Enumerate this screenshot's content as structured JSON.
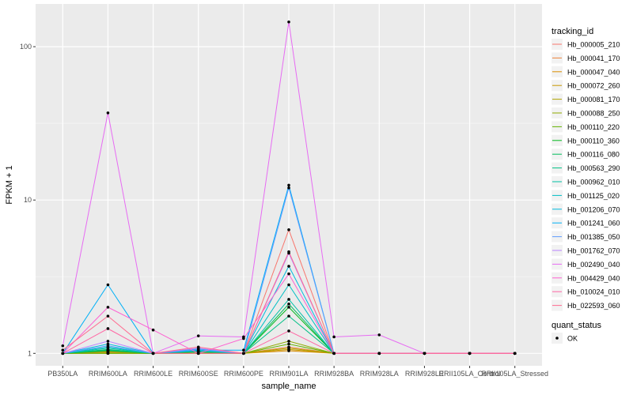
{
  "chart_data": {
    "type": "line",
    "xlabel": "sample_name",
    "ylabel": "FPKM + 1",
    "y_scale": "log10",
    "ylim": [
      0.83,
      190
    ],
    "y_ticks": [
      {
        "value": 1,
        "label": "1"
      },
      {
        "value": 10,
        "label": "10"
      },
      {
        "value": 100,
        "label": "100"
      }
    ],
    "grid": true,
    "legend_placement": "right",
    "categories": [
      "PB350LA",
      "RRIM600LA",
      "RRIM600LE",
      "RRIM600SE",
      "RRIM600PE",
      "RRIM901LA",
      "RRIM928BA",
      "RRIM928LA",
      "RRIM928LE",
      "RRII105LA_Control",
      "RRII105LA_Stressed"
    ],
    "legend": {
      "title": "tracking_id",
      "items": [
        {
          "name": "Hb_000005_210",
          "color": "#F8766D"
        },
        {
          "name": "Hb_000041_170",
          "color": "#EC8239"
        },
        {
          "name": "Hb_000047_040",
          "color": "#DB8E00"
        },
        {
          "name": "Hb_000072_260",
          "color": "#C79800"
        },
        {
          "name": "Hb_000081_170",
          "color": "#AEA200"
        },
        {
          "name": "Hb_000088_250",
          "color": "#8FAA00"
        },
        {
          "name": "Hb_000110_220",
          "color": "#64B200"
        },
        {
          "name": "Hb_000110_360",
          "color": "#00B81B"
        },
        {
          "name": "Hb_000116_080",
          "color": "#00BD5C"
        },
        {
          "name": "Hb_000563_290",
          "color": "#00C085"
        },
        {
          "name": "Hb_000962_010",
          "color": "#00C1A7"
        },
        {
          "name": "Hb_001125_020",
          "color": "#00BFC4"
        },
        {
          "name": "Hb_001206_070",
          "color": "#00BADE"
        },
        {
          "name": "Hb_001241_060",
          "color": "#00B0F6"
        },
        {
          "name": "Hb_001385_050",
          "color": "#619CFF"
        },
        {
          "name": "Hb_001762_070",
          "color": "#B983FF"
        },
        {
          "name": "Hb_002490_040",
          "color": "#E76BF3"
        },
        {
          "name": "Hb_004429_040",
          "color": "#FD61D1"
        },
        {
          "name": "Hb_010024_010",
          "color": "#FF67A4"
        },
        {
          "name": "Hb_022593_060",
          "color": "#FF6C91"
        }
      ]
    },
    "legend2": {
      "title": "quant_status",
      "items": [
        {
          "name": "OK"
        }
      ]
    },
    "series": [
      {
        "name": "Hb_000005_210",
        "color": "#F8766D",
        "values": [
          1.0,
          1.05,
          1.0,
          1.0,
          1.0,
          6.4,
          1.0,
          1.0,
          1.0,
          1.0,
          1.0
        ]
      },
      {
        "name": "Hb_000041_170",
        "color": "#EC8239",
        "values": [
          1.0,
          1.02,
          1.0,
          1.0,
          1.0,
          1.1,
          1.0,
          1.0,
          1.0,
          1.0,
          1.0
        ]
      },
      {
        "name": "Hb_000047_040",
        "color": "#DB8E00",
        "values": [
          1.0,
          1.0,
          1.0,
          1.0,
          1.0,
          1.04,
          1.0,
          1.0,
          1.0,
          1.0,
          1.0
        ]
      },
      {
        "name": "Hb_000072_260",
        "color": "#C79800",
        "values": [
          1.0,
          1.0,
          1.0,
          1.0,
          1.0,
          1.06,
          1.0,
          1.0,
          1.0,
          1.0,
          1.0
        ]
      },
      {
        "name": "Hb_000081_170",
        "color": "#AEA200",
        "values": [
          1.0,
          1.01,
          1.0,
          1.0,
          1.0,
          1.08,
          1.0,
          1.0,
          1.0,
          1.0,
          1.0
        ]
      },
      {
        "name": "Hb_000088_250",
        "color": "#8FAA00",
        "values": [
          1.0,
          1.03,
          1.0,
          1.0,
          1.0,
          1.2,
          1.0,
          1.0,
          1.0,
          1.0,
          1.0
        ]
      },
      {
        "name": "Hb_000110_220",
        "color": "#64B200",
        "values": [
          1.0,
          1.0,
          1.0,
          1.0,
          1.0,
          1.15,
          1.0,
          1.0,
          1.0,
          1.0,
          1.0
        ]
      },
      {
        "name": "Hb_000110_360",
        "color": "#00B81B",
        "values": [
          1.0,
          1.04,
          1.0,
          1.02,
          1.0,
          2.0,
          1.0,
          1.0,
          1.0,
          1.0,
          1.0
        ]
      },
      {
        "name": "Hb_000116_080",
        "color": "#00BD5C",
        "values": [
          1.0,
          1.06,
          1.0,
          1.03,
          1.0,
          2.1,
          1.0,
          1.0,
          1.0,
          1.0,
          1.0
        ]
      },
      {
        "name": "Hb_000563_290",
        "color": "#00C085",
        "values": [
          1.0,
          1.05,
          1.0,
          1.04,
          1.0,
          1.75,
          1.0,
          1.0,
          1.0,
          1.0,
          1.0
        ]
      },
      {
        "name": "Hb_000962_010",
        "color": "#00C1A7",
        "values": [
          1.0,
          1.08,
          1.0,
          1.03,
          1.0,
          2.25,
          1.0,
          1.0,
          1.0,
          1.0,
          1.0
        ]
      },
      {
        "name": "Hb_001125_020",
        "color": "#00BFC4",
        "values": [
          1.0,
          1.1,
          1.0,
          1.05,
          1.0,
          2.8,
          1.0,
          1.0,
          1.0,
          1.0,
          1.0
        ]
      },
      {
        "name": "Hb_001206_070",
        "color": "#00BADE",
        "values": [
          1.0,
          1.15,
          1.0,
          1.07,
          1.0,
          3.7,
          1.0,
          1.0,
          1.0,
          1.0,
          1.0
        ]
      },
      {
        "name": "Hb_001241_060",
        "color": "#00B0F6",
        "values": [
          1.0,
          2.8,
          1.0,
          1.05,
          1.05,
          12.5,
          1.0,
          1.0,
          1.0,
          1.0,
          1.0
        ]
      },
      {
        "name": "Hb_001385_050",
        "color": "#619CFF",
        "values": [
          1.0,
          1.12,
          1.0,
          1.06,
          1.0,
          12.0,
          1.0,
          1.0,
          1.0,
          1.0,
          1.0
        ]
      },
      {
        "name": "Hb_001762_070",
        "color": "#B983FF",
        "values": [
          1.0,
          1.2,
          1.0,
          1.08,
          1.0,
          4.5,
          1.0,
          1.0,
          1.0,
          1.0,
          1.0
        ]
      },
      {
        "name": "Hb_002490_040",
        "color": "#E76BF3",
        "values": [
          1.12,
          37.0,
          1.0,
          1.3,
          1.28,
          145.0,
          1.28,
          1.32,
          1.0,
          1.0,
          1.0
        ]
      },
      {
        "name": "Hb_004429_040",
        "color": "#FD61D1",
        "values": [
          1.0,
          2.0,
          1.42,
          1.0,
          1.25,
          3.3,
          1.0,
          1.0,
          1.0,
          1.0,
          1.0
        ]
      },
      {
        "name": "Hb_010024_010",
        "color": "#FF67A4",
        "values": [
          1.0,
          1.45,
          1.0,
          1.0,
          1.0,
          1.4,
          1.0,
          1.0,
          1.0,
          1.0,
          1.0
        ]
      },
      {
        "name": "Hb_022593_060",
        "color": "#FF6C91",
        "values": [
          1.05,
          1.75,
          1.0,
          1.1,
          1.0,
          4.6,
          1.0,
          1.0,
          1.0,
          1.0,
          1.0
        ]
      }
    ]
  }
}
